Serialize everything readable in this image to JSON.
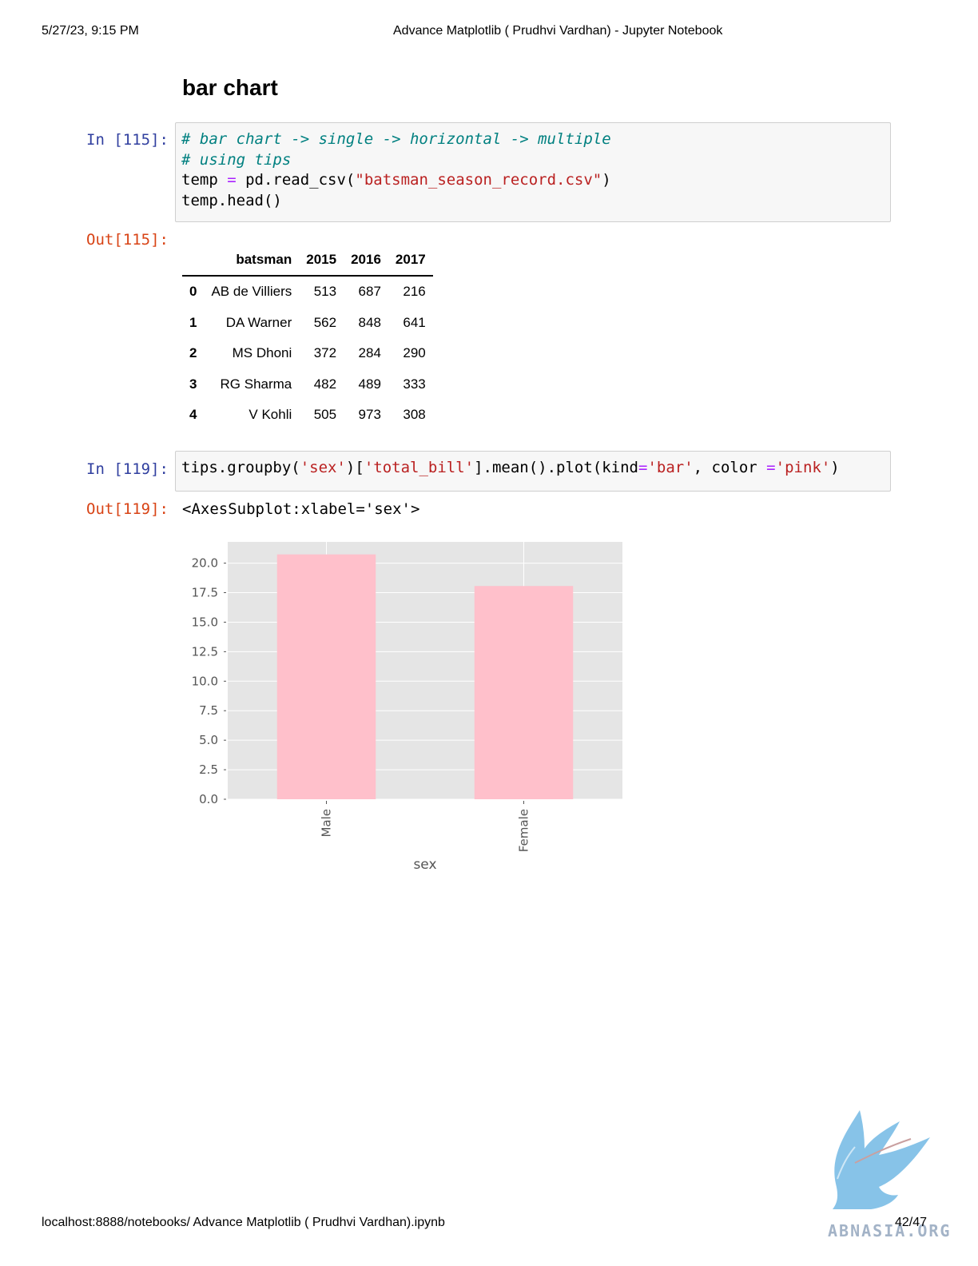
{
  "header": {
    "datetime": "5/27/23, 9:15 PM",
    "title": "Advance Matplotlib ( Prudhvi Vardhan) - Jupyter Notebook"
  },
  "footer": {
    "url": "localhost:8888/notebooks/ Advance Matplotlib ( Prudhvi Vardhan).ipynb",
    "page": "42/47"
  },
  "markdown": {
    "heading": "bar chart"
  },
  "cell1": {
    "in_prompt": "In [115]:",
    "out_prompt": "Out[115]:",
    "code": {
      "line1": "# bar chart -> single -> horizontal -> multiple",
      "line2": "# using tips",
      "l3_a": "temp ",
      "l3_op": "=",
      "l3_b": " pd.read_csv(",
      "l3_str": "\"batsman_season_record.csv\"",
      "l3_c": ")",
      "line4": "temp.head()"
    },
    "table": {
      "columns": [
        "batsman",
        "2015",
        "2016",
        "2017"
      ],
      "rows": [
        {
          "index": "0",
          "batsman": "AB de Villiers",
          "y2015": "513",
          "y2016": "687",
          "y2017": "216"
        },
        {
          "index": "1",
          "batsman": "DA Warner",
          "y2015": "562",
          "y2016": "848",
          "y2017": "641"
        },
        {
          "index": "2",
          "batsman": "MS Dhoni",
          "y2015": "372",
          "y2016": "284",
          "y2017": "290"
        },
        {
          "index": "3",
          "batsman": "RG Sharma",
          "y2015": "482",
          "y2016": "489",
          "y2017": "333"
        },
        {
          "index": "4",
          "batsman": "V Kohli",
          "y2015": "505",
          "y2016": "973",
          "y2017": "308"
        }
      ]
    }
  },
  "cell2": {
    "in_prompt": "In [119]:",
    "out_prompt": "Out[119]:",
    "code": {
      "a": "tips.groupby(",
      "s1": "'sex'",
      "b": ")[",
      "s2": "'total_bill'",
      "c": "].mean().plot(kind",
      "op1": "=",
      "s3": "'bar'",
      "d": ", color ",
      "op2": "=",
      "s4": "'pink'",
      "e": ")"
    },
    "output_text": "<AxesSubplot:xlabel='sex'>"
  },
  "chart_data": {
    "type": "bar",
    "categories": [
      "Male",
      "Female"
    ],
    "values": [
      20.74,
      18.06
    ],
    "xlabel": "sex",
    "ylabel": "",
    "ylim": [
      0,
      21.8
    ],
    "yticks": [
      "0.0",
      "2.5",
      "5.0",
      "7.5",
      "10.0",
      "12.5",
      "15.0",
      "17.5",
      "20.0"
    ],
    "bar_color": "#ffc0cb",
    "background": "#e5e5e5",
    "grid": true
  },
  "watermark": {
    "text": "ABNASIA.ORG",
    "color": "#87c3e8"
  }
}
